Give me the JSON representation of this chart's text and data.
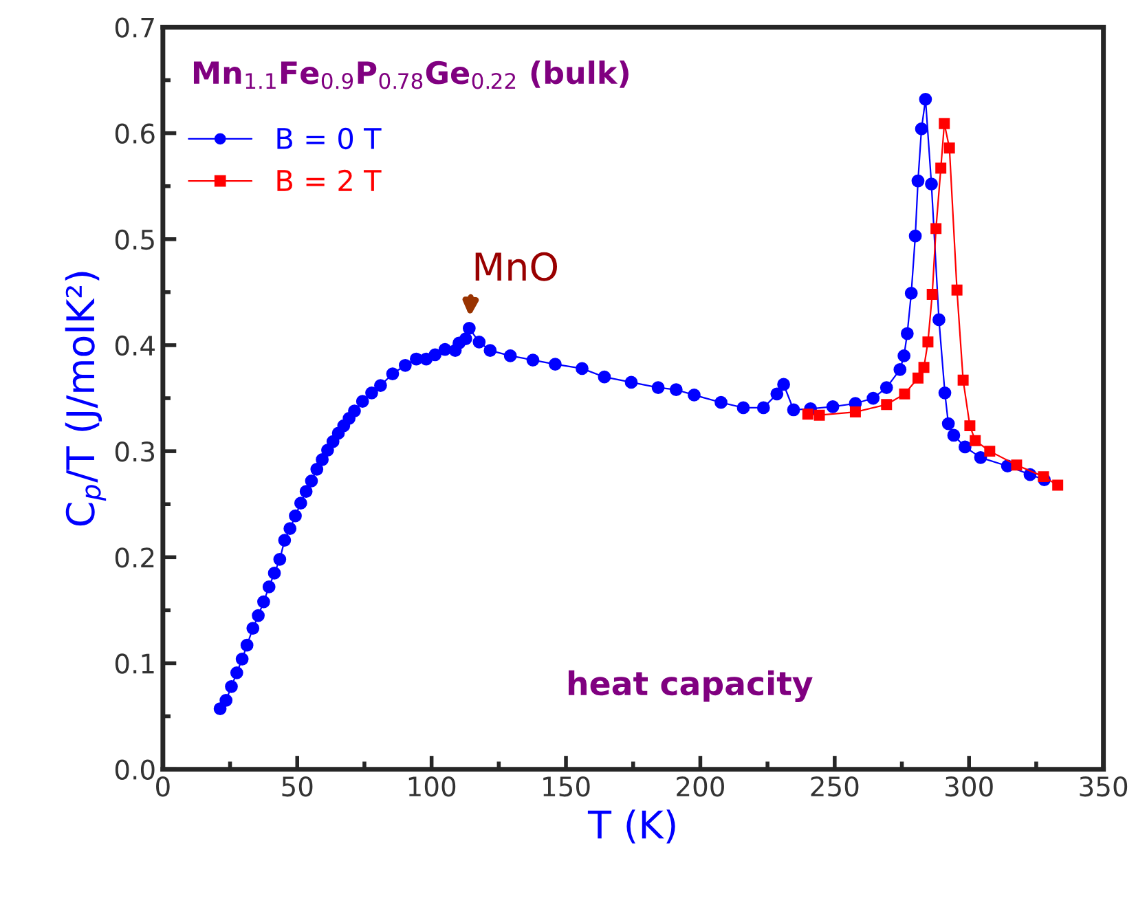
{
  "chart_data": {
    "type": "line",
    "title": "Mn$_{1.1}$Fe$_{0.9}$P$_{0.78}$Ge$_{0.22}$ (bulk)",
    "xlabel": "T (K)",
    "ylabel": "C$_{p}$/T (J/molK²)",
    "xlim": [
      0,
      350
    ],
    "ylim": [
      0,
      0.7
    ],
    "xticks": [
      0,
      50,
      100,
      150,
      200,
      250,
      300,
      350
    ],
    "yticks": [
      {
        "value": 0,
        "label": "0.0"
      },
      {
        "value": 0.1,
        "label": "0.1"
      },
      {
        "value": 0.2,
        "label": "0.2"
      },
      {
        "value": 0.3,
        "label": "0.3"
      },
      {
        "value": 0.4,
        "label": "0.4"
      },
      {
        "value": 0.5,
        "label": "0.5"
      },
      {
        "value": 0.6,
        "label": "0.6"
      },
      {
        "value": 0.7,
        "label": "0.7"
      }
    ],
    "legend": "top left",
    "grid": false,
    "line_style": "solid",
    "annotations": [
      {
        "text": "MnO",
        "x": 114,
        "y": 0.416
      },
      "heat capacity"
    ],
    "series": [
      {
        "name": "B = 0 T",
        "color": "#0000ff",
        "marker": "circle",
        "x": [
          21.3,
          23.5,
          25.5,
          27.5,
          29.5,
          31.3,
          33.5,
          35.5,
          37.5,
          39.5,
          41.5,
          43.5,
          45.3,
          47.3,
          49.3,
          51.3,
          53.3,
          55.3,
          57.3,
          59.3,
          61.3,
          63.3,
          65.3,
          67.3,
          69.3,
          71.3,
          74.3,
          77.7,
          81,
          85.5,
          90.2,
          94.3,
          98,
          101.3,
          105,
          108.8,
          110.2,
          112.7,
          114,
          117.7,
          121.8,
          129.3,
          137.7,
          146,
          156,
          164.3,
          174.3,
          184.3,
          191,
          197.7,
          207.7,
          216,
          223.5,
          228.5,
          231,
          234.7,
          241,
          249.3,
          257.7,
          264.3,
          269.3,
          274.3,
          275.8,
          277,
          278.5,
          280,
          281,
          282.3,
          283.8,
          286,
          288.8,
          291,
          292.3,
          294.3,
          298.5,
          304.3,
          314.3,
          322.7,
          328
        ],
        "values": [
          0.057,
          0.065,
          0.078,
          0.091,
          0.104,
          0.117,
          0.133,
          0.145,
          0.158,
          0.172,
          0.185,
          0.198,
          0.216,
          0.227,
          0.239,
          0.251,
          0.262,
          0.272,
          0.283,
          0.292,
          0.301,
          0.309,
          0.317,
          0.324,
          0.331,
          0.338,
          0.347,
          0.355,
          0.362,
          0.373,
          0.381,
          0.387,
          0.387,
          0.391,
          0.396,
          0.395,
          0.402,
          0.406,
          0.416,
          0.403,
          0.395,
          0.39,
          0.386,
          0.382,
          0.378,
          0.37,
          0.365,
          0.36,
          0.358,
          0.353,
          0.346,
          0.341,
          0.341,
          0.354,
          0.363,
          0.339,
          0.34,
          0.342,
          0.345,
          0.35,
          0.36,
          0.377,
          0.39,
          0.411,
          0.449,
          0.503,
          0.555,
          0.604,
          0.632,
          0.552,
          0.424,
          0.355,
          0.326,
          0.315,
          0.304,
          0.294,
          0.286,
          0.278,
          0.273
        ]
      },
      {
        "name": "B = 2 T",
        "color": "#ff0000",
        "marker": "square",
        "x": [
          240,
          244.3,
          257.7,
          269.3,
          276,
          281,
          283.2,
          284.7,
          286.3,
          287.7,
          289.5,
          290.8,
          292.7,
          295.5,
          297.8,
          300.3,
          302.3,
          307.7,
          317.7,
          327.7,
          333
        ],
        "values": [
          0.335,
          0.334,
          0.337,
          0.344,
          0.354,
          0.369,
          0.379,
          0.403,
          0.448,
          0.51,
          0.567,
          0.609,
          0.586,
          0.452,
          0.367,
          0.324,
          0.31,
          0.3,
          0.287,
          0.276,
          0.268
        ]
      }
    ]
  }
}
